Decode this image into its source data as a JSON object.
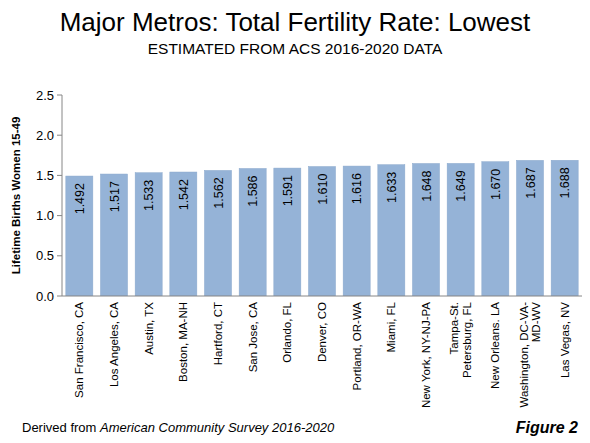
{
  "chart_data": {
    "type": "bar",
    "title": "Major Metros: Total Fertility Rate: Lowest",
    "subtitle": "ESTIMATED FROM ACS 2016-2020 DATA",
    "y_label": "Lifetime Births Women 15-49",
    "source": "Derived from American Community Survey 2016-2020",
    "figure_label": "Figure 2",
    "categories": [
      "San Francisco, CA",
      "Los Angeles, CA",
      "Austin, TX",
      "Boston, MA-NH",
      "Hartford, CT",
      "San Jose, CA",
      "Orlando, FL",
      "Denver, CO",
      "Portland, OR-WA",
      "Miami, FL",
      "New York, NY-NJ-PA",
      "Tampa-St. Petersburg, FL",
      "New Orleans. LA",
      "Washington, DC-VA-MD-WV",
      "Las Vegas, NV"
    ],
    "values": [
      1.492,
      1.517,
      1.533,
      1.542,
      1.562,
      1.586,
      1.591,
      1.61,
      1.616,
      1.633,
      1.648,
      1.649,
      1.67,
      1.687,
      1.688
    ],
    "value_labels": [
      "1.492",
      "1.517",
      "1.533",
      "1.542",
      "1.562",
      "1.586",
      "1.591",
      "1.610",
      "1.616",
      "1.633",
      "1.648",
      "1.649",
      "1.670",
      "1.687",
      "1.688"
    ],
    "color": "#95b3d7",
    "ylim": [
      0,
      2.5
    ],
    "yticks": [
      {
        "value": 0,
        "label": "0.0"
      },
      0.5,
      {
        "value": 1,
        "label": "1.0"
      },
      1.5,
      {
        "value": 2,
        "label": "2.0"
      },
      2.5
    ],
    "grid": false,
    "data_labels": true
  }
}
